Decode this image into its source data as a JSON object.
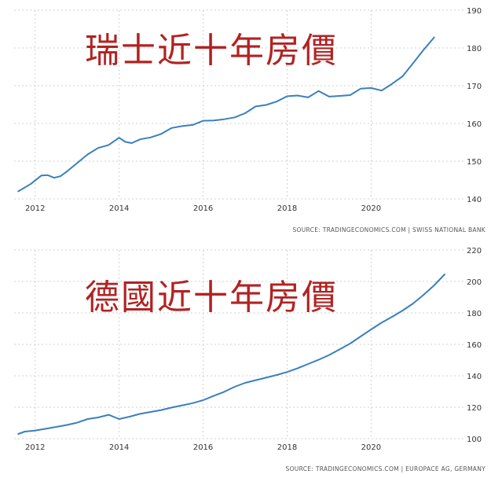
{
  "chart_data": [
    {
      "type": "line",
      "overlay_title": "瑞士近十年房價",
      "source": "SOURCE: TRADINGECONOMICS.COM  |  SWISS NATIONAL BANK",
      "x_ticks": [
        "2012",
        "2014",
        "2016",
        "2018",
        "2020"
      ],
      "y_ticks": [
        140,
        150,
        160,
        170,
        180,
        190
      ],
      "ylim": [
        140,
        190
      ],
      "xlim": [
        2011.5,
        2022.2
      ],
      "grid": true,
      "color": "#3a7fc1",
      "x": [
        2011.6,
        2011.9,
        2012.15,
        2012.3,
        2012.45,
        2012.6,
        2012.75,
        2013.0,
        2013.25,
        2013.5,
        2013.75,
        2014.0,
        2014.15,
        2014.3,
        2014.5,
        2014.75,
        2015.0,
        2015.25,
        2015.5,
        2015.75,
        2016.0,
        2016.25,
        2016.5,
        2016.75,
        2017.0,
        2017.25,
        2017.5,
        2017.75,
        2018.0,
        2018.25,
        2018.5,
        2018.75,
        2019.0,
        2019.25,
        2019.5,
        2019.75,
        2020.0,
        2020.25,
        2020.5,
        2020.75,
        2021.0,
        2021.25,
        2021.5
      ],
      "values": [
        142,
        144,
        146.2,
        146.3,
        145.6,
        146,
        147.2,
        149.5,
        151.8,
        153.5,
        154.3,
        156.2,
        155.1,
        154.8,
        155.8,
        156.3,
        157.2,
        158.8,
        159.3,
        159.6,
        160.7,
        160.8,
        161.1,
        161.6,
        162.7,
        164.5,
        164.9,
        165.8,
        167.2,
        167.4,
        166.9,
        168.6,
        167.1,
        167.3,
        167.5,
        169.2,
        169.4,
        168.7,
        170.5,
        172.5,
        176,
        179.5,
        182.8
      ]
    },
    {
      "type": "line",
      "overlay_title": "德國近十年房價",
      "source": "SOURCE: TRADINGECONOMICS.COM  |  EUROPACE AG, GERMANY",
      "x_ticks": [
        "2012",
        "2014",
        "2016",
        "2018",
        "2020"
      ],
      "y_ticks": [
        100,
        120,
        140,
        160,
        180,
        200,
        220
      ],
      "ylim": [
        100,
        220
      ],
      "xlim": [
        2011.5,
        2022.2
      ],
      "grid": true,
      "color": "#3a7fc1",
      "x": [
        2011.6,
        2011.75,
        2012.0,
        2012.25,
        2012.5,
        2012.75,
        2013.0,
        2013.25,
        2013.5,
        2013.75,
        2014.0,
        2014.25,
        2014.5,
        2014.75,
        2015.0,
        2015.25,
        2015.5,
        2015.75,
        2016.0,
        2016.25,
        2016.5,
        2016.75,
        2017.0,
        2017.25,
        2017.5,
        2017.75,
        2018.0,
        2018.25,
        2018.5,
        2018.75,
        2019.0,
        2019.25,
        2019.5,
        2019.75,
        2020.0,
        2020.25,
        2020.5,
        2020.75,
        2021.0,
        2021.25,
        2021.5,
        2021.75
      ],
      "values": [
        103,
        104.5,
        105.2,
        106.3,
        107.5,
        108.7,
        110.2,
        112.5,
        113.5,
        115.2,
        112.5,
        114,
        115.8,
        117,
        118.2,
        119.8,
        121.2,
        122.6,
        124.5,
        127.2,
        129.8,
        133,
        135.5,
        137.2,
        138.8,
        140.5,
        142.4,
        144.8,
        147.5,
        150.2,
        153.2,
        156.8,
        160.5,
        165,
        169.5,
        173.8,
        177.5,
        181.5,
        186,
        191.5,
        197.5,
        204.5
      ]
    }
  ]
}
